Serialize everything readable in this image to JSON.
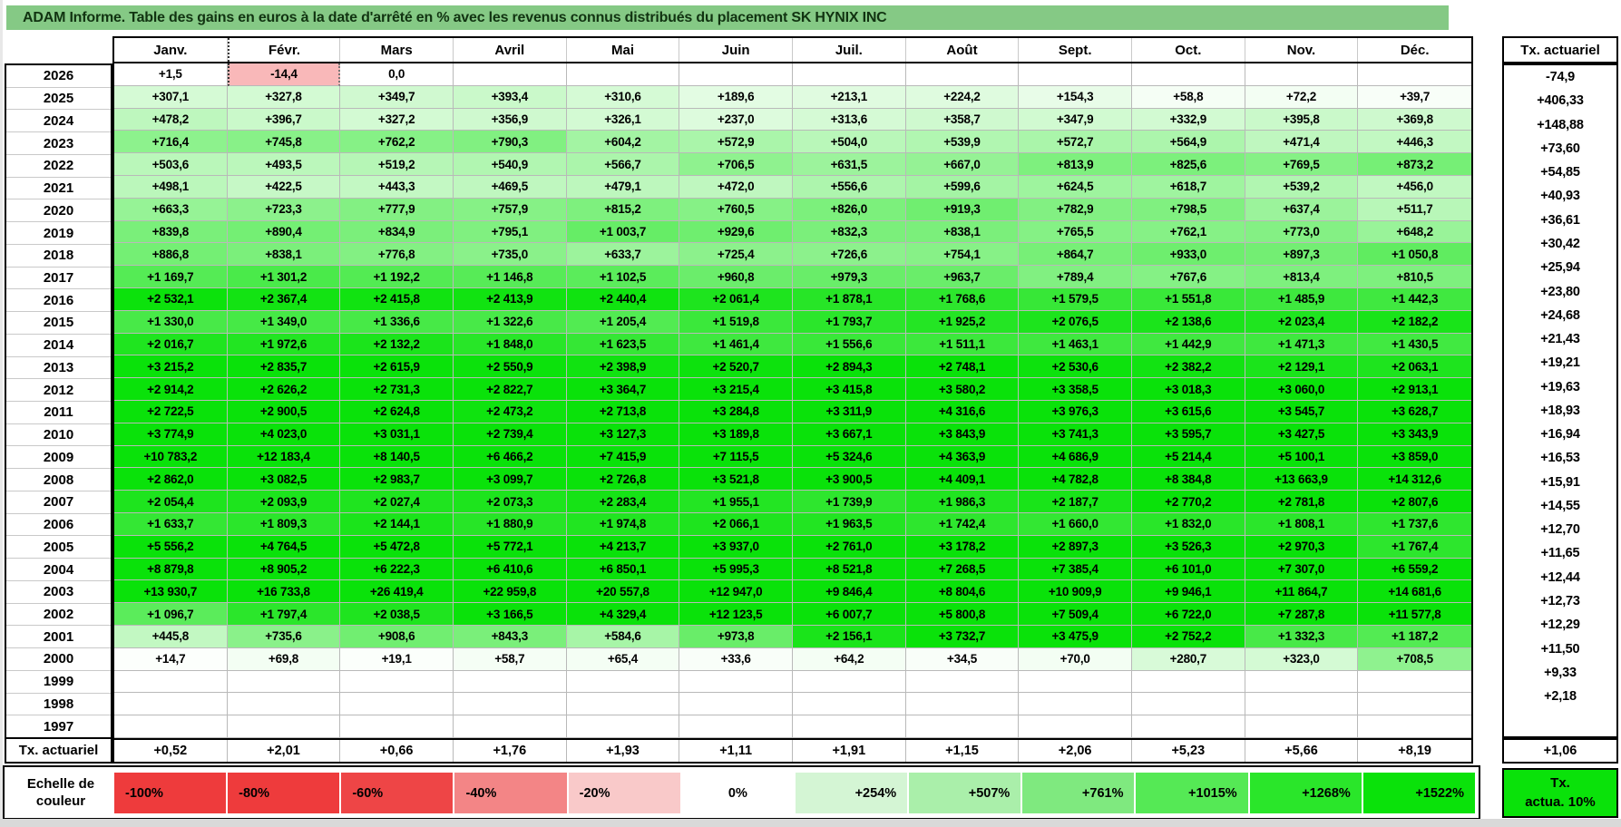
{
  "title": "ADAM Informe. Table des gains en euros à la date d'arrêté en % avec les revenus connus distribués du placement SK HYNIX INC",
  "table": {
    "months": [
      "Janv.",
      "Févr.",
      "Mars",
      "Avril",
      "Mai",
      "Juin",
      "Juil.",
      "Août",
      "Sept.",
      "Oct.",
      "Nov.",
      "Déc."
    ],
    "right_header": "Tx. actuariel",
    "selection": {
      "year": "2026",
      "month_index": 1
    },
    "rows": [
      {
        "year": "2026",
        "cells": [
          "+1,5",
          "-14,4",
          "0,0",
          "",
          "",
          "",
          "",
          "",
          "",
          "",
          "",
          ""
        ],
        "tx": "-74,9"
      },
      {
        "year": "2025",
        "cells": [
          "+307,1",
          "+327,8",
          "+349,7",
          "+393,4",
          "+310,6",
          "+189,6",
          "+213,1",
          "+224,2",
          "+154,3",
          "+58,8",
          "+72,2",
          "+39,7"
        ],
        "tx": "+406,33"
      },
      {
        "year": "2024",
        "cells": [
          "+478,2",
          "+396,7",
          "+327,2",
          "+356,9",
          "+326,1",
          "+237,0",
          "+313,6",
          "+358,7",
          "+347,9",
          "+332,9",
          "+395,8",
          "+369,8"
        ],
        "tx": "+148,88"
      },
      {
        "year": "2023",
        "cells": [
          "+716,4",
          "+745,8",
          "+762,2",
          "+790,3",
          "+604,2",
          "+572,9",
          "+504,0",
          "+539,9",
          "+572,7",
          "+564,9",
          "+471,4",
          "+446,3"
        ],
        "tx": "+73,60"
      },
      {
        "year": "2022",
        "cells": [
          "+503,6",
          "+493,5",
          "+519,2",
          "+540,9",
          "+566,7",
          "+706,5",
          "+631,5",
          "+667,0",
          "+813,9",
          "+825,6",
          "+769,5",
          "+873,2"
        ],
        "tx": "+54,85"
      },
      {
        "year": "2021",
        "cells": [
          "+498,1",
          "+422,5",
          "+443,3",
          "+469,5",
          "+479,1",
          "+472,0",
          "+556,6",
          "+599,6",
          "+624,5",
          "+618,7",
          "+539,2",
          "+456,0"
        ],
        "tx": "+40,93"
      },
      {
        "year": "2020",
        "cells": [
          "+663,3",
          "+723,3",
          "+777,9",
          "+757,9",
          "+815,2",
          "+760,5",
          "+826,0",
          "+919,3",
          "+782,9",
          "+798,5",
          "+637,4",
          "+511,7"
        ],
        "tx": "+36,61"
      },
      {
        "year": "2019",
        "cells": [
          "+839,8",
          "+890,4",
          "+834,9",
          "+795,1",
          "+1 003,7",
          "+929,6",
          "+832,3",
          "+838,1",
          "+765,5",
          "+762,1",
          "+773,0",
          "+648,2"
        ],
        "tx": "+30,42"
      },
      {
        "year": "2018",
        "cells": [
          "+886,8",
          "+838,1",
          "+776,8",
          "+735,0",
          "+633,7",
          "+725,4",
          "+726,6",
          "+754,1",
          "+864,7",
          "+933,0",
          "+897,3",
          "+1 050,8"
        ],
        "tx": "+25,94"
      },
      {
        "year": "2017",
        "cells": [
          "+1 169,7",
          "+1 301,2",
          "+1 192,2",
          "+1 146,8",
          "+1 102,5",
          "+960,8",
          "+979,3",
          "+963,7",
          "+789,4",
          "+767,6",
          "+813,4",
          "+810,5"
        ],
        "tx": "+23,80"
      },
      {
        "year": "2016",
        "cells": [
          "+2 532,1",
          "+2 367,4",
          "+2 415,8",
          "+2 413,9",
          "+2 440,4",
          "+2 061,4",
          "+1 878,1",
          "+1 768,6",
          "+1 579,5",
          "+1 551,8",
          "+1 485,9",
          "+1 442,3"
        ],
        "tx": "+24,68"
      },
      {
        "year": "2015",
        "cells": [
          "+1 330,0",
          "+1 349,0",
          "+1 336,6",
          "+1 322,6",
          "+1 205,4",
          "+1 519,8",
          "+1 793,7",
          "+1 925,2",
          "+2 076,5",
          "+2 138,6",
          "+2 023,4",
          "+2 182,2"
        ],
        "tx": "+21,43"
      },
      {
        "year": "2014",
        "cells": [
          "+2 016,7",
          "+1 972,6",
          "+2 132,2",
          "+1 848,0",
          "+1 623,5",
          "+1 461,4",
          "+1 556,6",
          "+1 511,1",
          "+1 463,1",
          "+1 442,9",
          "+1 471,3",
          "+1 430,5"
        ],
        "tx": "+19,21"
      },
      {
        "year": "2013",
        "cells": [
          "+3 215,2",
          "+2 835,7",
          "+2 615,9",
          "+2 550,9",
          "+2 398,9",
          "+2 520,7",
          "+2 894,3",
          "+2 748,1",
          "+2 530,6",
          "+2 382,2",
          "+2 129,1",
          "+2 063,1"
        ],
        "tx": "+19,63"
      },
      {
        "year": "2012",
        "cells": [
          "+2 914,2",
          "+2 626,2",
          "+2 731,3",
          "+2 822,7",
          "+3 364,7",
          "+3 215,4",
          "+3 415,8",
          "+3 580,2",
          "+3 358,5",
          "+3 018,3",
          "+3 060,0",
          "+2 913,1"
        ],
        "tx": "+18,93"
      },
      {
        "year": "2011",
        "cells": [
          "+2 722,5",
          "+2 900,5",
          "+2 624,8",
          "+2 473,2",
          "+2 713,8",
          "+3 284,8",
          "+3 311,9",
          "+4 316,6",
          "+3 976,3",
          "+3 615,6",
          "+3 545,7",
          "+3 628,7"
        ],
        "tx": "+16,94"
      },
      {
        "year": "2010",
        "cells": [
          "+3 774,9",
          "+4 023,0",
          "+3 031,1",
          "+2 739,4",
          "+3 127,3",
          "+3 189,8",
          "+3 667,1",
          "+3 843,9",
          "+3 741,3",
          "+3 595,7",
          "+3 427,5",
          "+3 343,9"
        ],
        "tx": "+16,53"
      },
      {
        "year": "2009",
        "cells": [
          "+10 783,2",
          "+12 183,4",
          "+8 140,5",
          "+6 466,2",
          "+7 415,9",
          "+7 115,5",
          "+5 324,6",
          "+4 363,9",
          "+4 686,9",
          "+5 214,4",
          "+5 100,1",
          "+3 859,0"
        ],
        "tx": "+15,91"
      },
      {
        "year": "2008",
        "cells": [
          "+2 862,0",
          "+3 082,5",
          "+2 983,7",
          "+3 099,7",
          "+2 726,8",
          "+3 521,8",
          "+3 900,5",
          "+4 409,1",
          "+4 782,8",
          "+8 384,8",
          "+13 663,9",
          "+14 312,6"
        ],
        "tx": "+14,55"
      },
      {
        "year": "2007",
        "cells": [
          "+2 054,4",
          "+2 093,9",
          "+2 027,4",
          "+2 073,3",
          "+2 283,4",
          "+1 955,1",
          "+1 739,9",
          "+1 986,3",
          "+2 187,7",
          "+2 770,2",
          "+2 781,8",
          "+2 807,6"
        ],
        "tx": "+12,70"
      },
      {
        "year": "2006",
        "cells": [
          "+1 633,7",
          "+1 809,3",
          "+2 144,1",
          "+1 880,9",
          "+1 974,8",
          "+2 066,1",
          "+1 963,5",
          "+1 742,4",
          "+1 660,0",
          "+1 832,0",
          "+1 808,1",
          "+1 737,6"
        ],
        "tx": "+11,65"
      },
      {
        "year": "2005",
        "cells": [
          "+5 556,2",
          "+4 764,5",
          "+5 472,8",
          "+5 772,1",
          "+4 213,7",
          "+3 937,0",
          "+2 761,0",
          "+3 178,2",
          "+2 897,3",
          "+3 526,3",
          "+2 970,3",
          "+1 767,4"
        ],
        "tx": "+12,44"
      },
      {
        "year": "2004",
        "cells": [
          "+8 879,8",
          "+8 905,2",
          "+6 222,3",
          "+6 410,6",
          "+6 850,1",
          "+5 995,3",
          "+8 521,8",
          "+7 268,5",
          "+7 385,4",
          "+6 101,0",
          "+7 307,0",
          "+6 559,2"
        ],
        "tx": "+12,73"
      },
      {
        "year": "2003",
        "cells": [
          "+13 930,7",
          "+16 733,8",
          "+26 419,4",
          "+22 959,8",
          "+20 557,8",
          "+12 947,0",
          "+9 846,4",
          "+8 804,6",
          "+10 909,9",
          "+9 946,1",
          "+11 864,7",
          "+14 681,6"
        ],
        "tx": "+12,29"
      },
      {
        "year": "2002",
        "cells": [
          "+1 096,7",
          "+1 797,4",
          "+2 038,5",
          "+3 166,5",
          "+4 329,4",
          "+12 123,5",
          "+6 007,7",
          "+5 800,8",
          "+7 509,4",
          "+6 722,0",
          "+7 287,8",
          "+11 577,8"
        ],
        "tx": "+11,50"
      },
      {
        "year": "2001",
        "cells": [
          "+445,8",
          "+735,6",
          "+908,6",
          "+843,3",
          "+584,6",
          "+973,8",
          "+2 156,1",
          "+3 732,7",
          "+3 475,9",
          "+2 752,2",
          "+1 332,3",
          "+1 187,2"
        ],
        "tx": "+9,33"
      },
      {
        "year": "2000",
        "cells": [
          "+14,7",
          "+69,8",
          "+19,1",
          "+58,7",
          "+65,4",
          "+33,6",
          "+64,2",
          "+34,5",
          "+70,0",
          "+280,7",
          "+323,0",
          "+708,5"
        ],
        "tx": "+2,18"
      },
      {
        "year": "1999",
        "cells": [
          "",
          "",
          "",
          "",
          "",
          "",
          "",
          "",
          "",
          "",
          "",
          ""
        ],
        "tx": ""
      },
      {
        "year": "1998",
        "cells": [
          "",
          "",
          "",
          "",
          "",
          "",
          "",
          "",
          "",
          "",
          "",
          ""
        ],
        "tx": ""
      },
      {
        "year": "1997",
        "cells": [
          "",
          "",
          "",
          "",
          "",
          "",
          "",
          "",
          "",
          "",
          "",
          ""
        ],
        "tx": ""
      }
    ],
    "footer": {
      "label": "Tx. actuariel",
      "cells": [
        "+0,52",
        "+2,01",
        "+0,66",
        "+1,76",
        "+1,93",
        "+1,11",
        "+1,91",
        "+1,15",
        "+2,06",
        "+5,23",
        "+5,66",
        "+8,19"
      ],
      "tx": "+1,06"
    }
  },
  "legend": {
    "label_line1": "Echelle de",
    "label_line2": "couleur",
    "entries": [
      {
        "label": "-100%",
        "color": "#ee3b3c",
        "align": "left"
      },
      {
        "label": "-80%",
        "color": "#ee3b3c",
        "align": "left"
      },
      {
        "label": "-60%",
        "color": "#ee4546",
        "align": "left"
      },
      {
        "label": "-40%",
        "color": "#f38586",
        "align": "left"
      },
      {
        "label": "-20%",
        "color": "#f9c9c9",
        "align": "left"
      },
      {
        "label": "0%",
        "color": "#ffffff",
        "align": "center"
      },
      {
        "label": "+254%",
        "color": "#d4f5d4",
        "align": "right"
      },
      {
        "label": "+507%",
        "color": "#aaefaa",
        "align": "right"
      },
      {
        "label": "+761%",
        "color": "#7fe97f",
        "align": "right"
      },
      {
        "label": "+1015%",
        "color": "#55e955",
        "align": "right"
      },
      {
        "label": "+1268%",
        "color": "#2ae62a",
        "align": "right"
      },
      {
        "label": "+1522%",
        "color": "#0ae20a",
        "align": "right"
      }
    ],
    "tx_box_line1": "Tx.",
    "tx_box_line2": "actua. 10%"
  },
  "colors": {
    "title_bg": "#85c985",
    "title_text": "#113311",
    "grid_line": "#b9b9b9",
    "border": "#000000",
    "negative_full": "#ee3b3c",
    "positive_full": "#0ae20a",
    "bottom_strip": "#d9d9d9",
    "tx_actua_bg": "#0ae20a"
  },
  "color_ramp": {
    "negative_divisor": 40,
    "positive_anchors": [
      [
        0,
        0
      ],
      [
        20,
        0.015
      ],
      [
        80,
        0.055
      ],
      [
        200,
        0.12
      ],
      [
        350,
        0.19
      ],
      [
        500,
        0.28
      ],
      [
        650,
        0.42
      ],
      [
        800,
        0.52
      ],
      [
        950,
        0.6
      ],
      [
        1100,
        0.67
      ],
      [
        1300,
        0.74
      ],
      [
        1600,
        0.82
      ],
      [
        2000,
        0.91
      ],
      [
        2600,
        1.0
      ]
    ]
  }
}
